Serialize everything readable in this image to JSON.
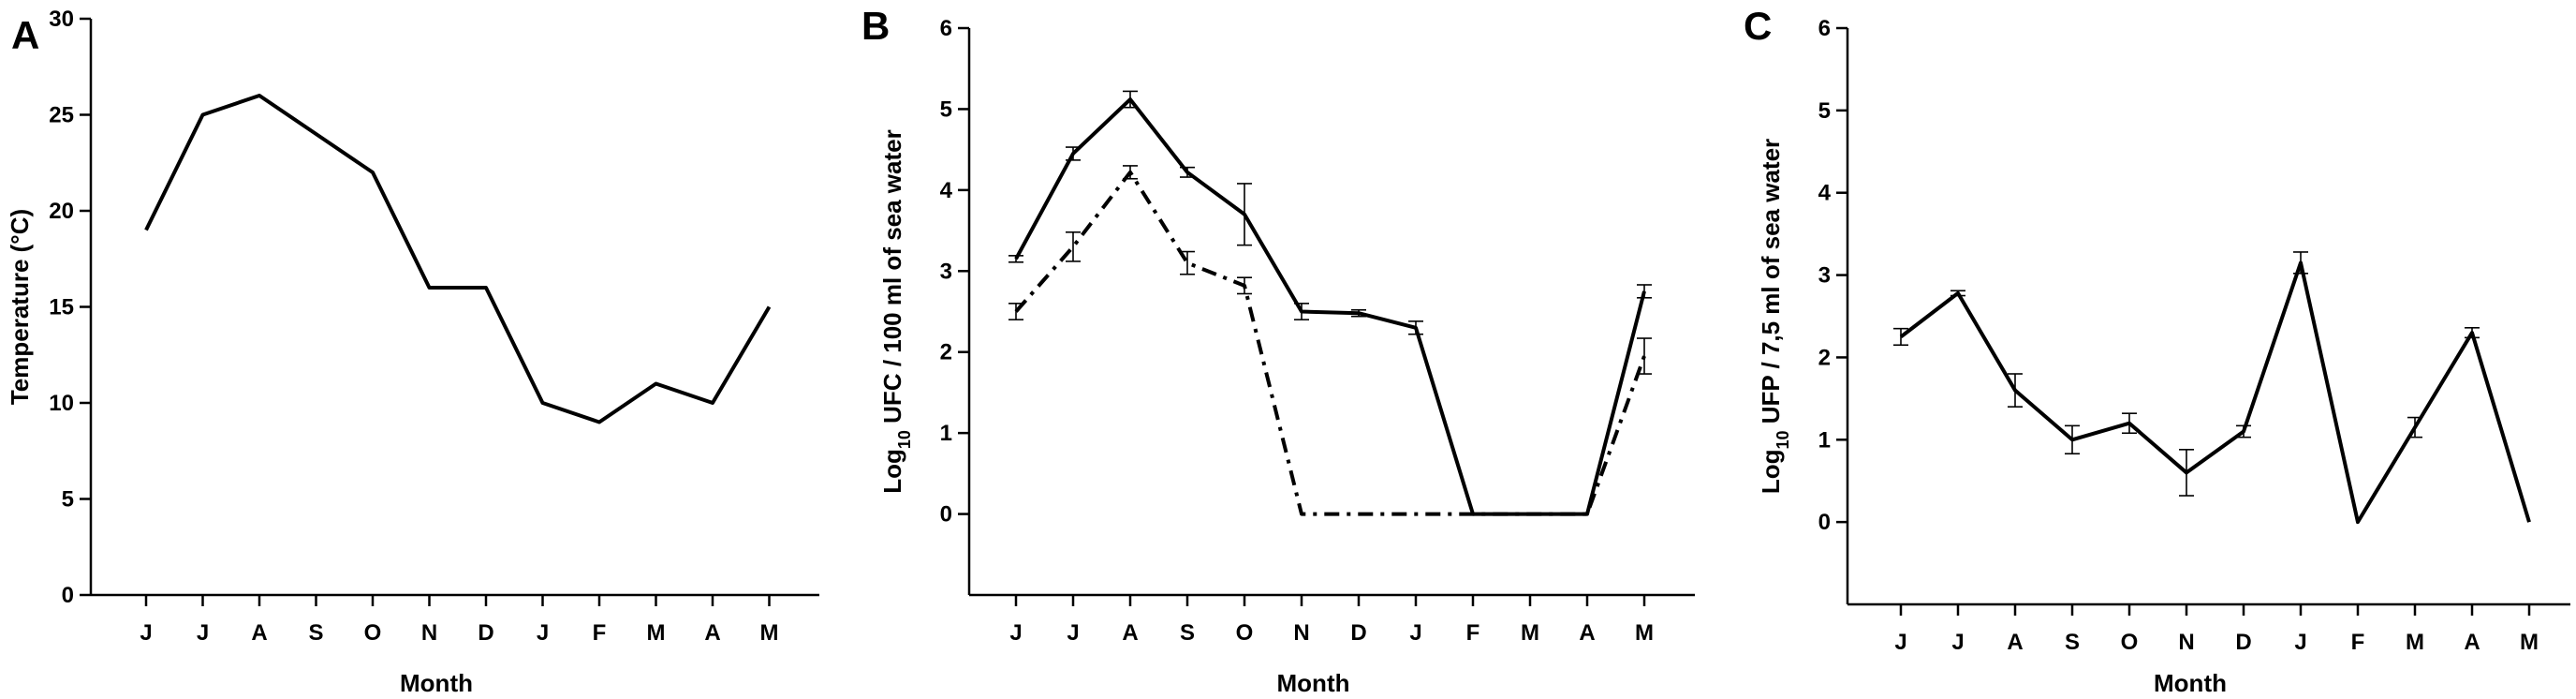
{
  "chart_data": [
    {
      "type": "line",
      "panel": "A",
      "ylabel": "Temperature (°C)",
      "xlabel": "Month",
      "categories": [
        "J",
        "J",
        "A",
        "S",
        "O",
        "N",
        "D",
        "J",
        "F",
        "M",
        "A",
        "M"
      ],
      "ylim": [
        0,
        30
      ],
      "yticks": [
        0,
        5,
        10,
        15,
        20,
        25,
        30
      ],
      "series": [
        {
          "style": "solid",
          "values": [
            19,
            25,
            26,
            24,
            22,
            16,
            16,
            10,
            9,
            11,
            10,
            15
          ]
        }
      ]
    },
    {
      "type": "line",
      "panel": "B",
      "ylabel_parts": [
        "Log",
        "10",
        " UFC / 100 ml of sea water"
      ],
      "xlabel": "Month",
      "categories": [
        "J",
        "J",
        "A",
        "S",
        "O",
        "N",
        "D",
        "J",
        "F",
        "M",
        "A",
        "M"
      ],
      "ylim": [
        -1,
        6
      ],
      "yticks": [
        0,
        1,
        2,
        3,
        4,
        5,
        6
      ],
      "series": [
        {
          "style": "solid",
          "values": [
            3.15,
            4.45,
            5.12,
            4.22,
            3.7,
            2.5,
            2.48,
            2.3,
            0,
            0,
            0,
            2.75
          ],
          "errors": [
            0.04,
            0.08,
            0.1,
            0.06,
            0.38,
            0.1,
            0.04,
            0.08,
            0,
            0,
            0,
            0.08
          ]
        },
        {
          "style": "dash-dot",
          "values": [
            2.5,
            3.3,
            4.22,
            3.1,
            2.82,
            0,
            0,
            0,
            0,
            0,
            0,
            1.95
          ],
          "errors": [
            0.1,
            0.18,
            0.08,
            0.14,
            0.1,
            0,
            0,
            0,
            0,
            0,
            0,
            0.22
          ]
        }
      ]
    },
    {
      "type": "line",
      "panel": "C",
      "ylabel_parts": [
        "Log",
        "10",
        " UFP / 7,5 ml of sea water"
      ],
      "xlabel": "Month",
      "categories": [
        "J",
        "J",
        "A",
        "S",
        "O",
        "N",
        "D",
        "J",
        "F",
        "M",
        "A",
        "M"
      ],
      "ylim": [
        -1,
        6
      ],
      "yticks": [
        0,
        1,
        2,
        3,
        4,
        5,
        6
      ],
      "series": [
        {
          "style": "solid",
          "values": [
            2.25,
            2.78,
            1.6,
            1.0,
            1.2,
            0.6,
            1.1,
            3.15,
            0,
            1.15,
            2.3,
            0
          ],
          "errors": [
            0.1,
            0.03,
            0.2,
            0.17,
            0.12,
            0.28,
            0.07,
            0.13,
            0,
            0.12,
            0.06,
            0
          ]
        }
      ]
    }
  ]
}
